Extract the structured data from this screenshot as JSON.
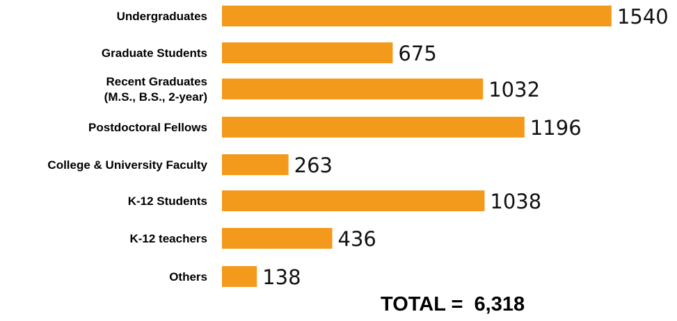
{
  "chart_data": {
    "type": "bar",
    "orientation": "horizontal",
    "categories": [
      [
        "Undergraduates"
      ],
      [
        "Graduate Students"
      ],
      [
        "Recent Graduates",
        "(M.S., B.S., 2-year)"
      ],
      [
        "Postdoctoral Fellows"
      ],
      [
        "College & University Faculty"
      ],
      [
        "K-12 Students"
      ],
      [
        "K-12 teachers"
      ],
      [
        "Others"
      ]
    ],
    "values": [
      1540,
      675,
      1032,
      1196,
      263,
      1038,
      436,
      138
    ],
    "value_labels": [
      "1540",
      "675",
      "1032",
      "1196",
      "263",
      "1038",
      "436",
      "138"
    ],
    "bar_color": "#f39a1c",
    "grid": false,
    "legend": "none"
  },
  "total_text": "TOTAL =  6,318"
}
